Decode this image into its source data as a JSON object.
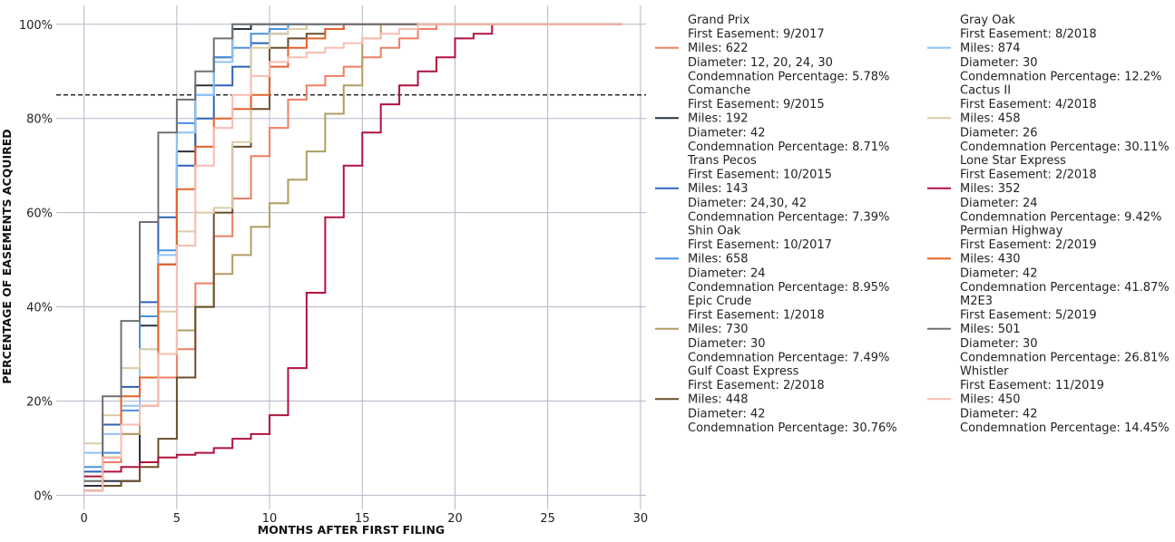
{
  "chart_data": {
    "type": "line",
    "step": true,
    "title": "",
    "xlabel": "MONTHS AFTER FIRST FILING",
    "ylabel": "PERCENTAGE OF EASEMENTS ACQUIRED",
    "xlim": [
      -1.5,
      30.3
    ],
    "ylim": [
      -3,
      104
    ],
    "x_ticks": [
      0,
      5,
      10,
      15,
      20,
      25,
      30
    ],
    "y_ticks": [
      0,
      20,
      40,
      60,
      80,
      100
    ],
    "y_tick_labels": [
      "0%",
      "20%",
      "40%",
      "60%",
      "80%",
      "100%"
    ],
    "grid": true,
    "reference_line": {
      "y": 85,
      "style": "dashed",
      "color": "#000000"
    },
    "legend_position": "right, two columns",
    "series": [
      {
        "name": "Grand Prix",
        "color": "#EE7E63",
        "legend": [
          "Grand Prix",
          "First Easement: 9/2017",
          "Miles: 622",
          "Diameter: 12, 20, 24, 30",
          "Condemnation Percentage: 5.78%"
        ],
        "x": [
          0,
          1,
          2,
          3,
          4,
          5,
          6,
          7,
          8,
          9,
          10,
          11,
          12,
          13,
          14,
          15,
          16,
          17,
          18,
          19,
          20,
          21,
          22,
          23,
          24,
          25,
          26,
          27,
          28,
          29
        ],
        "y": [
          2,
          7,
          13,
          19,
          25,
          31,
          45,
          55,
          63,
          72,
          78,
          84,
          87,
          89,
          91,
          93,
          95,
          97,
          99,
          100,
          100,
          100,
          100,
          100,
          100,
          100,
          100,
          100,
          100,
          100
        ]
      },
      {
        "name": "Comanche",
        "color": "#2C3240",
        "legend": [
          "Comanche",
          "First Easement: 9/2015",
          "Miles: 192",
          "Diameter: 42",
          "Condemnation Percentage: 8.71%"
        ],
        "x": [
          0,
          1,
          2,
          3,
          4,
          5,
          6,
          7,
          8,
          9,
          10,
          11,
          12,
          13,
          14,
          15,
          16,
          17,
          18,
          19,
          20,
          21,
          22,
          23,
          24,
          25,
          26,
          27,
          28,
          29
        ],
        "y": [
          2,
          3,
          3,
          36,
          49,
          73,
          87,
          93,
          99,
          100,
          100,
          100,
          100,
          100,
          100,
          100,
          100,
          100,
          100,
          100,
          100,
          100,
          100,
          100,
          100,
          100,
          100,
          100,
          100,
          100
        ]
      },
      {
        "name": "Trans Pecos",
        "color": "#2E62B5",
        "legend": [
          "Trans Pecos",
          "First Easement: 10/2015",
          "Miles: 143",
          "Diameter: 24,30, 42",
          "Condemnation Percentage: 7.39%"
        ],
        "x": [
          0,
          1,
          2,
          3,
          4,
          5,
          6,
          7,
          8,
          9,
          10,
          11,
          12,
          13,
          14,
          15,
          16,
          17,
          18,
          19,
          20,
          21,
          22,
          23,
          24,
          25,
          26,
          27,
          28,
          29
        ],
        "y": [
          5,
          15,
          23,
          41,
          59,
          70,
          80,
          87,
          91,
          96,
          98,
          99,
          100,
          100,
          100,
          100,
          100,
          100,
          100,
          100,
          100,
          100,
          100,
          100,
          100,
          100,
          100,
          100,
          100,
          100
        ]
      },
      {
        "name": "Shin Oak",
        "color": "#4A90E2",
        "legend": [
          "Shin Oak",
          "First Easement: 10/2017",
          "Miles: 658",
          "Diameter: 24",
          "Condemnation Percentage: 8.95%"
        ],
        "x": [
          0,
          1,
          2,
          3,
          4,
          5,
          6,
          7,
          8,
          9,
          10,
          11,
          12,
          13,
          14,
          15,
          16,
          17,
          18,
          19,
          20,
          21,
          22,
          23,
          24,
          25,
          26,
          27,
          28,
          29
        ],
        "y": [
          6,
          9,
          18,
          38,
          52,
          79,
          85,
          93,
          95,
          98,
          99,
          100,
          100,
          100,
          100,
          100,
          100,
          100,
          100,
          100,
          100,
          100,
          100,
          100,
          100,
          100,
          100,
          100,
          100,
          100
        ]
      },
      {
        "name": "Epic Crude",
        "color": "#B09E62",
        "legend": [
          "Epic Crude",
          "First Easement: 1/2018",
          "Miles: 730",
          "Diameter: 30",
          "Condemnation Percentage: 7.49%"
        ],
        "x": [
          0,
          1,
          2,
          3,
          4,
          5,
          6,
          7,
          8,
          9,
          10,
          11,
          12,
          13,
          14,
          15,
          16,
          17,
          18,
          19,
          20,
          21,
          22,
          23,
          24,
          25,
          26,
          27,
          28,
          29
        ],
        "y": [
          3,
          8,
          13,
          19,
          30,
          35,
          40,
          47,
          51,
          57,
          62,
          67,
          73,
          81,
          87,
          97,
          100,
          100,
          100,
          100,
          100,
          100,
          100,
          100,
          100,
          100,
          100,
          100,
          100,
          100
        ]
      },
      {
        "name": "Gulf Coast Express",
        "color": "#6A4E2A",
        "legend": [
          "Gulf Coast Express",
          "First Easement: 2/2018",
          "Miles: 448",
          "Diameter: 42",
          "Condemnation Percentage: 30.76%"
        ],
        "x": [
          0,
          1,
          2,
          3,
          4,
          5,
          6,
          7,
          8,
          9,
          10,
          11,
          12,
          13,
          14,
          15,
          16,
          17,
          18,
          19,
          20,
          21,
          22,
          23,
          24,
          25,
          26,
          27,
          28,
          29
        ],
        "y": [
          1,
          2,
          3,
          6,
          12,
          25,
          40,
          60,
          74,
          82,
          95,
          97,
          98,
          99,
          100,
          100,
          100,
          100,
          100,
          100,
          100,
          100,
          100,
          100,
          100,
          100,
          100,
          100,
          100,
          100
        ]
      },
      {
        "name": "Gray Oak",
        "color": "#8EC2F5",
        "legend": [
          "Gray Oak",
          "First Easement: 8/2018",
          "Miles: 874",
          "Diameter: 30",
          "Condemnation Percentage: 12.2%"
        ],
        "x": [
          0,
          1,
          2,
          3,
          4,
          5,
          6,
          7,
          8,
          9,
          10,
          11,
          12,
          13,
          14,
          15,
          16,
          17,
          18,
          19,
          20,
          21,
          22,
          23,
          24,
          25,
          26,
          27,
          28,
          29
        ],
        "y": [
          9,
          13,
          19,
          31,
          51,
          77,
          85,
          92,
          100,
          100,
          100,
          100,
          100,
          100,
          100,
          100,
          100,
          100,
          100,
          100,
          100,
          100,
          100,
          100,
          100,
          100,
          100,
          100,
          100,
          100
        ]
      },
      {
        "name": "Cactus II",
        "color": "#DCCBA7",
        "legend": [
          "Cactus II",
          "First Easement: 4/2018",
          "Miles: 458",
          "Diameter: 26",
          "Condemnation Percentage: 30.11%"
        ],
        "x": [
          0,
          1,
          2,
          3,
          4,
          5,
          6,
          7,
          8,
          9,
          10,
          11,
          12,
          13,
          14,
          15,
          16,
          17,
          18,
          19,
          20,
          21,
          22,
          23,
          24,
          25,
          26,
          27,
          28,
          29
        ],
        "y": [
          11,
          17,
          27,
          31,
          39,
          56,
          60,
          61,
          75,
          95,
          98,
          99,
          100,
          100,
          100,
          100,
          100,
          100,
          100,
          100,
          100,
          100,
          100,
          100,
          100,
          100,
          100,
          100,
          100,
          100
        ]
      },
      {
        "name": "Lone Star Express",
        "color": "#B0123E",
        "legend": [
          "Lone Star Express",
          "First Easement: 2/2018",
          "Miles: 352",
          "Diameter: 24",
          "Condemnation Percentage: 9.42%"
        ],
        "x": [
          0,
          1,
          2,
          3,
          4,
          5,
          6,
          7,
          8,
          9,
          10,
          11,
          12,
          13,
          14,
          15,
          16,
          17,
          18,
          19,
          20,
          21,
          22,
          23,
          24,
          25,
          26,
          27,
          28,
          29
        ],
        "y": [
          4,
          5,
          6,
          7,
          8,
          8.6,
          9,
          10,
          12,
          13,
          17,
          27,
          43,
          59,
          70,
          77,
          83,
          87,
          90,
          93,
          97,
          98,
          100,
          100,
          100,
          100,
          100,
          100,
          100,
          100
        ]
      },
      {
        "name": "Permian Highway",
        "color": "#E4622B",
        "legend": [
          "Permian Highway",
          "First Easement: 2/2019",
          "Miles: 430",
          "Diameter: 42",
          "Condemnation Percentage: 41.87%"
        ],
        "x": [
          0,
          1,
          2,
          3,
          4,
          5,
          6,
          7,
          8,
          9,
          10,
          11,
          12,
          13,
          14,
          15,
          16,
          17,
          18,
          19,
          20,
          21,
          22,
          23,
          24,
          25,
          26,
          27,
          28,
          29
        ],
        "y": [
          1,
          8,
          21,
          25,
          49,
          65,
          74,
          80,
          82,
          85,
          91,
          95,
          97,
          99,
          100,
          100,
          100,
          100,
          100,
          100,
          100,
          100,
          100,
          100,
          100,
          100,
          100,
          100,
          100,
          100
        ]
      },
      {
        "name": "M2E3",
        "color": "#6E7074",
        "legend": [
          "M2E3",
          "First Easement: 5/2019",
          "Miles: 501",
          "Diameter: 30",
          "Condemnation Percentage: 26.81%"
        ],
        "x": [
          0,
          1,
          2,
          3,
          4,
          5,
          6,
          7,
          8,
          9,
          10,
          11,
          12,
          13,
          14,
          15,
          16,
          17,
          18,
          19,
          20,
          21,
          22,
          23,
          24,
          25,
          26,
          27,
          28,
          29
        ],
        "y": [
          3,
          21,
          37,
          58,
          77,
          84,
          90,
          97,
          100,
          100,
          100,
          100,
          100,
          100,
          100,
          100,
          100,
          100,
          100,
          100,
          100,
          100,
          100,
          100,
          100,
          100,
          100,
          100,
          100,
          100
        ]
      },
      {
        "name": "Whistler",
        "color": "#F8BCB0",
        "legend": [
          "Whistler",
          "First Easement: 11/2019",
          "Miles: 450",
          "Diameter: 42",
          "Condemnation Percentage: 14.45%"
        ],
        "x": [
          0,
          1,
          2,
          3,
          4,
          5,
          6,
          7,
          8,
          9,
          10,
          11,
          12,
          13,
          14,
          15,
          16,
          17,
          18,
          19,
          20,
          21,
          22,
          23,
          24,
          25,
          26,
          27,
          28,
          29
        ],
        "y": [
          1,
          8,
          15,
          19,
          30,
          53,
          70,
          78,
          85,
          89,
          92,
          93,
          94,
          95,
          96,
          97,
          98,
          99,
          100,
          100,
          100,
          100,
          100,
          100,
          100,
          100,
          100,
          100,
          100,
          100
        ]
      }
    ]
  }
}
